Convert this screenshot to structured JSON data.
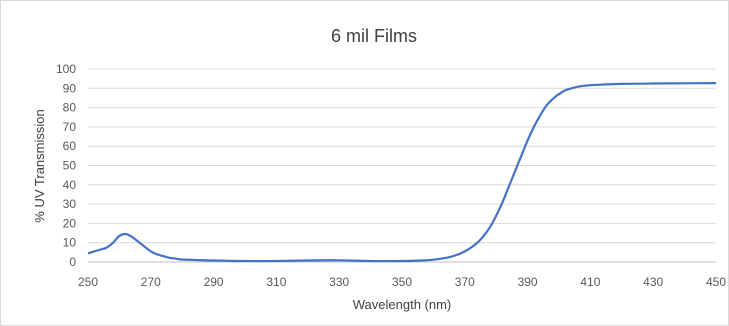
{
  "chart_data": {
    "type": "line",
    "title": "6 mil Films",
    "xlabel": "Wavelength (nm)",
    "ylabel": "% UV Transmission",
    "xlim": [
      250,
      450
    ],
    "ylim": [
      0,
      100
    ],
    "x_ticks": [
      250,
      270,
      290,
      310,
      330,
      350,
      370,
      390,
      410,
      430,
      450
    ],
    "y_ticks": [
      0,
      10,
      20,
      30,
      40,
      50,
      60,
      70,
      80,
      90,
      100
    ],
    "grid": "horizontal",
    "legend": "none",
    "series_color": "#4472c4",
    "series": [
      {
        "x": [
          250,
          252,
          254,
          256,
          258,
          260,
          262,
          264,
          266,
          268,
          270,
          272,
          274,
          276,
          278,
          280,
          285,
          290,
          295,
          300,
          310,
          320,
          330,
          340,
          350,
          355,
          360,
          365,
          368,
          370,
          372,
          374,
          376,
          378,
          380,
          382,
          384,
          386,
          388,
          390,
          392,
          394,
          396,
          398,
          400,
          402,
          404,
          406,
          408,
          410,
          415,
          420,
          430,
          440,
          450
        ],
        "values": [
          4.5,
          5.5,
          6.5,
          7.5,
          10,
          13.5,
          14.5,
          13,
          10.5,
          8,
          5.5,
          4,
          3,
          2.2,
          1.7,
          1.3,
          1,
          0.8,
          0.6,
          0.5,
          0.5,
          0.8,
          0.9,
          0.5,
          0.5,
          0.7,
          1.2,
          2.5,
          4,
          5.5,
          7.5,
          10,
          13.5,
          18,
          24,
          31,
          39,
          47,
          55,
          63,
          70,
          76,
          81,
          84.5,
          87,
          89,
          90,
          90.8,
          91.3,
          91.6,
          92,
          92.3,
          92.5,
          92.6,
          92.7
        ]
      }
    ]
  }
}
